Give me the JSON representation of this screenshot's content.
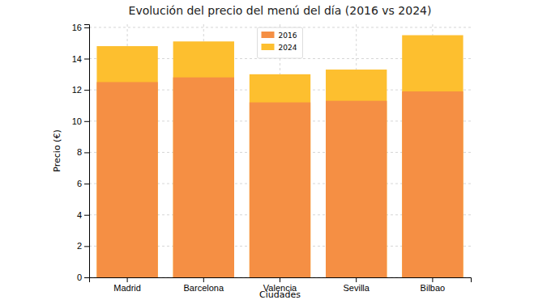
{
  "chart_data": {
    "type": "bar",
    "title": "Evolución del precio del menú del día (2016 vs 2024)",
    "x_label": "Ciudades",
    "y_label": "Precio (€)",
    "categories": [
      "Madrid",
      "Barcelona",
      "Valencia",
      "Sevilla",
      "Bilbao"
    ],
    "series": [
      {
        "name": "2016",
        "color": "#f58f44",
        "values": [
          12.5,
          12.8,
          11.2,
          11.3,
          11.9
        ]
      },
      {
        "name": "2024",
        "color": "#fdbf2f",
        "values": [
          14.8,
          15.1,
          13.0,
          13.3,
          15.5
        ]
      }
    ],
    "ylim": [
      0,
      16.2
    ],
    "yticks": [
      0,
      2,
      4,
      6,
      8,
      10,
      12,
      14,
      16
    ],
    "grid": true,
    "stacked": false,
    "legend": "upper center"
  }
}
